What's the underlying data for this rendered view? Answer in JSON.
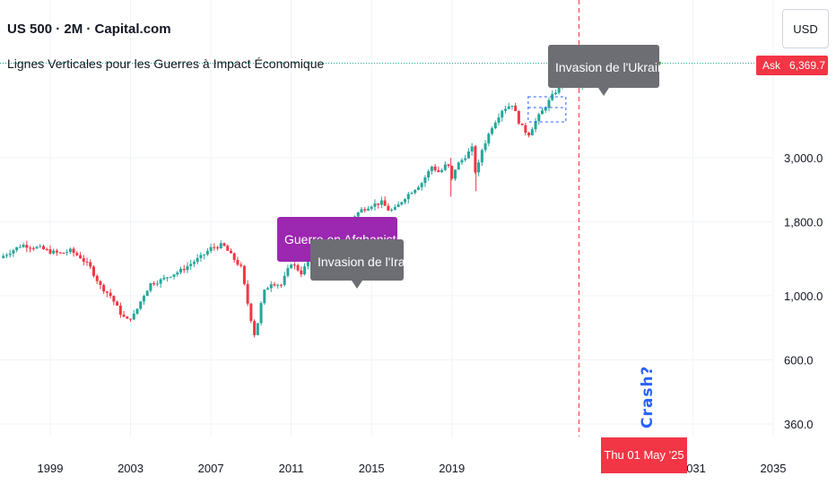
{
  "header": {
    "title": "US 500 · 2M · Capital.com",
    "subtitle": "Lignes Verticales pour les Guerres à Impact Économique"
  },
  "currency_button": "USD",
  "ask": {
    "label": "Ask",
    "price": "6,369.7"
  },
  "cursor_date": "Thu 01 May '25",
  "crash_label": "Crash?",
  "colors": {
    "up": "#26a69a",
    "down": "#f23645",
    "label_gray": "#6d6e74",
    "label_purple": "#9c27b0",
    "crash_text": "#2962ff",
    "vline": "#f23645",
    "hline": "#22ab94"
  },
  "chart_data": {
    "type": "candlestick",
    "y_scale": "log",
    "ylim": [
      300,
      9000
    ],
    "xlim": [
      1996.5,
      2035
    ],
    "x_ticks": [
      "1999",
      "2003",
      "2007",
      "2011",
      "2015",
      "2019",
      "2031",
      "2035"
    ],
    "y_ticks": [
      "360.0",
      "600.0",
      "1,000.0",
      "1,800.0",
      "3,000.0"
    ],
    "close_series": [
      [
        1996.5,
        1350
      ],
      [
        1997.0,
        1420
      ],
      [
        1997.6,
        1500
      ],
      [
        1998.0,
        1480
      ],
      [
        1998.5,
        1460
      ],
      [
        1999.0,
        1420
      ],
      [
        1999.5,
        1400
      ],
      [
        2000.0,
        1430
      ],
      [
        2000.5,
        1360
      ],
      [
        2001.0,
        1250
      ],
      [
        2001.5,
        1080
      ],
      [
        2002.0,
        1000
      ],
      [
        2002.5,
        870
      ],
      [
        2002.8,
        820
      ],
      [
        2003.2,
        860
      ],
      [
        2003.6,
        990
      ],
      [
        2004.0,
        1100
      ],
      [
        2004.5,
        1130
      ],
      [
        2005.0,
        1180
      ],
      [
        2005.5,
        1220
      ],
      [
        2006.0,
        1290
      ],
      [
        2006.5,
        1360
      ],
      [
        2007.0,
        1460
      ],
      [
        2007.6,
        1500
      ],
      [
        2008.0,
        1380
      ],
      [
        2008.5,
        1250
      ],
      [
        2008.9,
        890
      ],
      [
        2009.2,
        720
      ],
      [
        2009.6,
        1020
      ],
      [
        2010.0,
        1110
      ],
      [
        2010.5,
        1090
      ],
      [
        2011.0,
        1300
      ],
      [
        2011.5,
        1200
      ],
      [
        2012.0,
        1360
      ],
      [
        2012.5,
        1410
      ],
      [
        2013.0,
        1560
      ],
      [
        2013.5,
        1700
      ],
      [
        2014.0,
        1850
      ],
      [
        2014.5,
        1980
      ],
      [
        2015.0,
        2060
      ],
      [
        2015.5,
        2100
      ],
      [
        2015.9,
        1960
      ],
      [
        2016.2,
        2000
      ],
      [
        2016.6,
        2170
      ],
      [
        2017.0,
        2300
      ],
      [
        2017.5,
        2460
      ],
      [
        2018.0,
        2800
      ],
      [
        2018.4,
        2660
      ],
      [
        2018.8,
        2900
      ],
      [
        2018.95,
        2450
      ],
      [
        2019.2,
        2800
      ],
      [
        2019.6,
        3000
      ],
      [
        2020.0,
        3230
      ],
      [
        2020.2,
        2600
      ],
      [
        2020.5,
        3200
      ],
      [
        2021.0,
        3850
      ],
      [
        2021.5,
        4400
      ],
      [
        2022.0,
        4600
      ],
      [
        2022.4,
        3900
      ],
      [
        2022.8,
        3600
      ],
      [
        2023.2,
        4050
      ],
      [
        2023.6,
        4450
      ],
      [
        2024.0,
        4900
      ],
      [
        2024.5,
        5500
      ],
      [
        2025.0,
        5900
      ],
      [
        2025.3,
        5200
      ],
      [
        2025.6,
        6100
      ],
      [
        2025.9,
        6369.7
      ]
    ],
    "annotations": [
      {
        "text": "Guerre en Afghanistan",
        "x": 2001.75,
        "style": "purple"
      },
      {
        "text": "Invasion de l'Irak",
        "x": 2003.2,
        "style": "gray"
      },
      {
        "text": "Invasion de l'Ukraine",
        "x": 2022.15,
        "style": "gray"
      }
    ],
    "vertical_line_x": 2025.33,
    "horizontal_line_value": 6369.7
  }
}
